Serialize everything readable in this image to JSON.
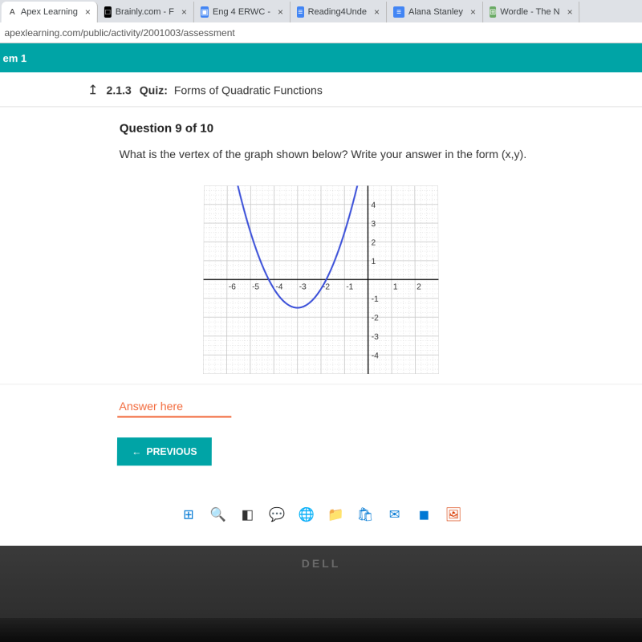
{
  "browser": {
    "tabs": [
      {
        "icon": "A",
        "iconBg": "#fff",
        "iconColor": "#333",
        "label": "Apex Learning"
      },
      {
        "icon": "□",
        "iconBg": "#000",
        "iconColor": "#fff",
        "label": "Brainly.com - F"
      },
      {
        "icon": "▣",
        "iconBg": "#4285f4",
        "iconColor": "#fff",
        "label": "Eng 4 ERWC -"
      },
      {
        "icon": "≡",
        "iconBg": "#4285f4",
        "iconColor": "#fff",
        "label": "Reading4Unde"
      },
      {
        "icon": "≡",
        "iconBg": "#4285f4",
        "iconColor": "#fff",
        "label": "Alana Stanley"
      },
      {
        "icon": "⊞",
        "iconBg": "#6aaa64",
        "iconColor": "#fff",
        "label": "Wordle - The N"
      }
    ],
    "url": "apexlearning.com/public/activity/2001003/assessment"
  },
  "sidebar": {
    "label": "em 1"
  },
  "quiz": {
    "number": "2.1.3",
    "type_label": "Quiz:",
    "title": "Forms of Quadratic Functions"
  },
  "question": {
    "heading": "Question 9 of 10",
    "text": "What is the vertex of the graph shown below? Write your answer in the form (x,y).",
    "answer_placeholder": "Answer here"
  },
  "buttons": {
    "previous": "PREVIOUS"
  },
  "graph": {
    "type": "parabola-plot",
    "background_color": "#ffffff",
    "grid_color": "#c8c8c8",
    "axis_color": "#000000",
    "curve_color": "#3a4fd8",
    "curve_width": 2,
    "xlim": [
      -7,
      3
    ],
    "ylim": [
      -5,
      5
    ],
    "xticks": [
      -6,
      -5,
      -4,
      -3,
      -2,
      -1,
      1,
      2
    ],
    "yticks": [
      -4,
      -3,
      -2,
      -1,
      1,
      2,
      3,
      4
    ],
    "vertex": [
      -3,
      -1.5
    ],
    "parabola_a": 1.0,
    "label_fontsize": 10,
    "minor_grid_divisions": 4
  },
  "taskbar_icons": [
    {
      "name": "start-icon",
      "glyph": "⊞",
      "color": "#0078d4"
    },
    {
      "name": "search-icon",
      "glyph": "🔍",
      "color": "#333"
    },
    {
      "name": "task-view-icon",
      "glyph": "◧",
      "color": "#333"
    },
    {
      "name": "chat-icon",
      "glyph": "💬",
      "color": "#0078d4"
    },
    {
      "name": "edge-icon",
      "glyph": "🌐",
      "color": "#0078d4"
    },
    {
      "name": "explorer-icon",
      "glyph": "📁",
      "color": "#ffb900"
    },
    {
      "name": "store-icon",
      "glyph": "🛍",
      "color": "#0078d4"
    },
    {
      "name": "mail-icon",
      "glyph": "✉",
      "color": "#0078d4"
    },
    {
      "name": "app-icon",
      "glyph": "◼",
      "color": "#0078d4"
    },
    {
      "name": "photos-icon",
      "glyph": "🖼",
      "color": "#d83b01"
    }
  ],
  "laptop_brand": "DELL"
}
